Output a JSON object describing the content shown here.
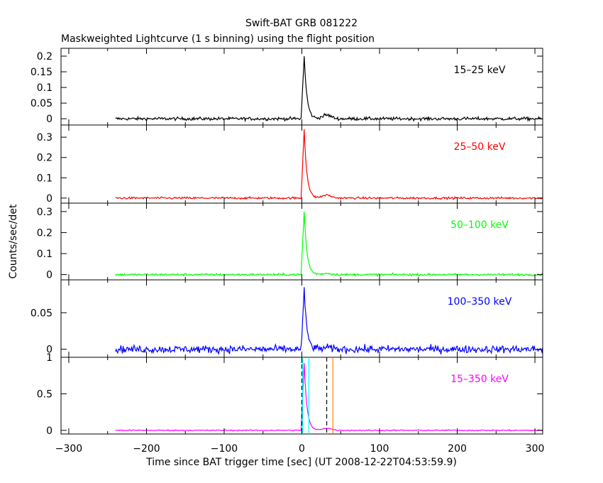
{
  "chart_data": {
    "type": "line",
    "title": "Swift-BAT GRB 081222",
    "subtitle": "Maskweighted Lightcurve (1 s binning) using the flight position",
    "xlabel": "Time since BAT trigger time [sec] (UT 2008-12-22T04:53:59.9)",
    "ylabel": "Counts/sec/det",
    "xlim": [
      -310,
      310
    ],
    "xticks": [
      -300,
      -200,
      -100,
      0,
      100,
      200,
      300
    ],
    "x_start": -240,
    "panels": [
      {
        "name": "15-25 keV",
        "band_label": "15–25 keV",
        "color": "#000000",
        "ylim": [
          -0.02,
          0.225
        ],
        "yticks": [
          0,
          0.05,
          0.1,
          0.15,
          0.2
        ],
        "ytick_labels": [
          "0",
          "0.05",
          "0.1",
          "0.15",
          "0.2"
        ],
        "noise": 0.004,
        "peak": 0.2,
        "tail": 0.012
      },
      {
        "name": "25-50 keV",
        "band_label": "25–50 keV",
        "color": "#ff0000",
        "ylim": [
          -0.025,
          0.36
        ],
        "yticks": [
          0,
          0.1,
          0.2,
          0.3
        ],
        "ytick_labels": [
          "0",
          "0.1",
          "0.2",
          "0.3"
        ],
        "noise": 0.004,
        "peak": 0.34,
        "tail": 0.015
      },
      {
        "name": "50-100 keV",
        "band_label": "50–100 keV",
        "color": "#00ff00",
        "ylim": [
          -0.025,
          0.34
        ],
        "yticks": [
          0,
          0.1,
          0.2,
          0.3
        ],
        "ytick_labels": [
          "0",
          "0.1",
          "0.2",
          "0.3"
        ],
        "noise": 0.004,
        "peak": 0.3,
        "tail": 0.006
      },
      {
        "name": "100-350 keV",
        "band_label": "100–350 keV",
        "color": "#0000ff",
        "ylim": [
          -0.011,
          0.095
        ],
        "yticks": [
          0,
          0.05
        ],
        "ytick_labels": [
          "0",
          "0.05"
        ],
        "noise": 0.004,
        "peak": 0.08,
        "tail": 0.002
      },
      {
        "name": "15-350 keV",
        "band_label": "15–350 keV",
        "color": "#ff00ff",
        "ylim": [
          -0.05,
          1.0
        ],
        "yticks": [
          0,
          0.5,
          1
        ],
        "ytick_labels": [
          "0",
          "0.5",
          "1"
        ],
        "noise": 0.006,
        "peak": 0.92,
        "tail": 0.03
      }
    ],
    "markers": [
      {
        "x": 0,
        "color": "#000000",
        "style": "dashed"
      },
      {
        "x": 1,
        "color": "#00ffff",
        "style": "solid"
      },
      {
        "x": 9,
        "color": "#00ffff",
        "style": "solid"
      },
      {
        "x": 32,
        "color": "#000000",
        "style": "dashed"
      },
      {
        "x": 40,
        "color": "#ff8000",
        "style": "solid"
      }
    ]
  }
}
